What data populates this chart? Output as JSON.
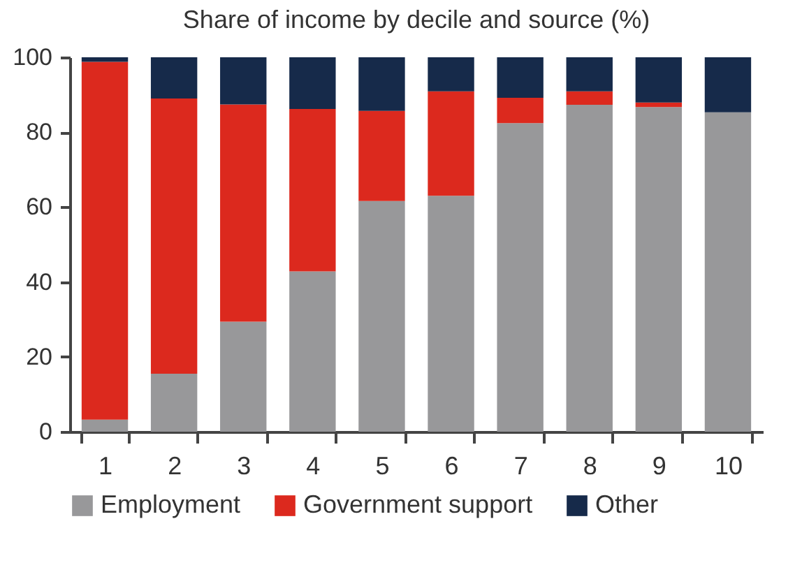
{
  "chart_data": {
    "type": "bar",
    "title": "Share of income by decile and source (%)",
    "stacked": true,
    "categories": [
      "1",
      "2",
      "3",
      "4",
      "5",
      "6",
      "7",
      "8",
      "9",
      "10"
    ],
    "series": [
      {
        "name": "Employment",
        "color": "#98989a",
        "values": [
          3.2,
          15.5,
          29.4,
          42.8,
          61.6,
          63.0,
          82.4,
          87.3,
          86.7,
          85.3
        ]
      },
      {
        "name": "Government support",
        "color": "#dc291e",
        "values": [
          95.6,
          73.5,
          58.0,
          43.4,
          24.1,
          27.9,
          6.8,
          3.6,
          1.2,
          0
        ]
      },
      {
        "name": "Other",
        "color": "#162a4a",
        "values": [
          1.2,
          11.0,
          12.6,
          13.8,
          14.3,
          9.1,
          10.8,
          9.1,
          12.1,
          14.7
        ]
      }
    ],
    "ylim": [
      0,
      100
    ],
    "yticks": [
      0,
      20,
      40,
      60,
      80,
      100
    ],
    "grid": false,
    "legend": "bottom"
  }
}
